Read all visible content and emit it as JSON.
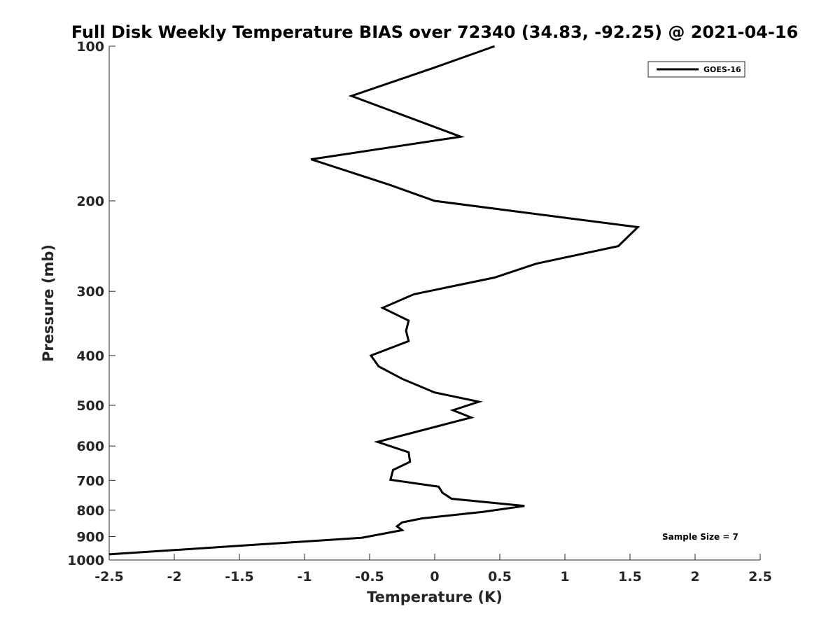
{
  "chart_data": {
    "type": "line",
    "title": "Full Disk Weekly Temperature BIAS over 72340 (34.83, -92.25) @ 2021-04-16",
    "xlabel": "Temperature (K)",
    "ylabel": "Pressure (mb)",
    "xlim": [
      -2.5,
      2.5
    ],
    "ylim": [
      100,
      1000
    ],
    "y_scale": "log",
    "y_reversed": true,
    "x_ticks": [
      "-2.5",
      "-2",
      "-1.5",
      "-1",
      "-0.5",
      "0",
      "0.5",
      "1",
      "1.5",
      "2",
      "2.5"
    ],
    "y_ticks": [
      "100",
      "200",
      "300",
      "400",
      "500",
      "600",
      "700",
      "800",
      "900",
      "1000"
    ],
    "grid": false,
    "legend_position": "top-right",
    "annotation": "Sample Size = 7",
    "series": [
      {
        "name": "GOES-16",
        "color": "#000000",
        "points": [
          [
            0.46,
            100
          ],
          [
            0.0,
            110
          ],
          [
            -0.64,
            125
          ],
          [
            0.2,
            150
          ],
          [
            -0.95,
            166
          ],
          [
            -0.35,
            186
          ],
          [
            0.0,
            200
          ],
          [
            1.56,
            225
          ],
          [
            1.41,
            245
          ],
          [
            0.78,
            265
          ],
          [
            0.46,
            282
          ],
          [
            -0.16,
            304
          ],
          [
            -0.4,
            323
          ],
          [
            -0.2,
            342
          ],
          [
            -0.22,
            358
          ],
          [
            -0.2,
            375
          ],
          [
            -0.49,
            400
          ],
          [
            -0.43,
            420
          ],
          [
            -0.25,
            444
          ],
          [
            0.0,
            472
          ],
          [
            0.34,
            492
          ],
          [
            0.14,
            511
          ],
          [
            0.28,
            528
          ],
          [
            0.0,
            551
          ],
          [
            -0.44,
            589
          ],
          [
            -0.2,
            617
          ],
          [
            -0.19,
            644
          ],
          [
            -0.32,
            668
          ],
          [
            -0.34,
            698
          ],
          [
            0.03,
            720
          ],
          [
            0.06,
            740
          ],
          [
            0.13,
            760
          ],
          [
            0.69,
            785
          ],
          [
            0.37,
            806
          ],
          [
            -0.1,
            830
          ],
          [
            -0.25,
            845
          ],
          [
            -0.29,
            860
          ],
          [
            -0.25,
            875
          ],
          [
            -0.56,
            905
          ],
          [
            -2.5,
            975
          ]
        ]
      }
    ]
  }
}
